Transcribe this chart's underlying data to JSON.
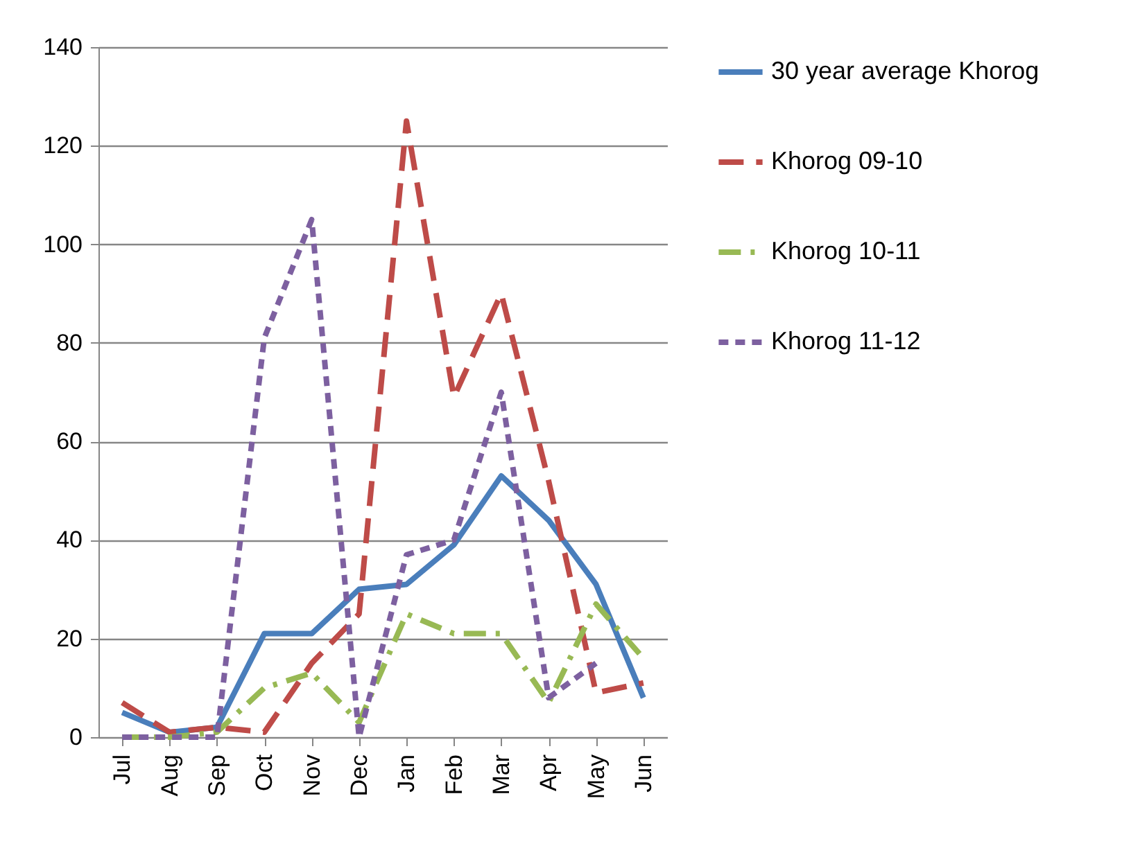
{
  "chart_data": {
    "type": "line",
    "categories": [
      "Jul",
      "Aug",
      "Sep",
      "Oct",
      "Nov",
      "Dec",
      "Jan",
      "Feb",
      "Mar",
      "Apr",
      "May",
      "Jun"
    ],
    "series": [
      {
        "name": "30 year average Khorog",
        "color": "#4a7ebb",
        "line_style": "solid",
        "values": [
          5,
          1,
          2,
          21,
          21,
          30,
          31,
          39,
          53,
          44,
          31,
          8
        ]
      },
      {
        "name": "Khorog 09-10",
        "color": "#be4b48",
        "line_style": "dashed",
        "values": [
          7,
          1,
          2,
          1,
          15,
          25,
          125,
          69,
          90,
          52,
          9,
          11
        ]
      },
      {
        "name": "Khorog 10-11",
        "color": "#98b954",
        "line_style": "dashdot",
        "values": [
          0,
          0,
          1,
          10,
          13,
          3,
          25,
          21,
          21,
          7,
          27,
          16
        ]
      },
      {
        "name": "Khorog 11-12",
        "color": "#7d60a0",
        "line_style": "dotted",
        "values": [
          0,
          0,
          0,
          81,
          105,
          0,
          37,
          40,
          70,
          8,
          15,
          null
        ]
      }
    ],
    "ylim": [
      0,
      140
    ],
    "yticks": [
      0,
      20,
      40,
      60,
      80,
      100,
      120,
      140
    ],
    "grid": "y",
    "legend": "right",
    "marker": "none"
  }
}
